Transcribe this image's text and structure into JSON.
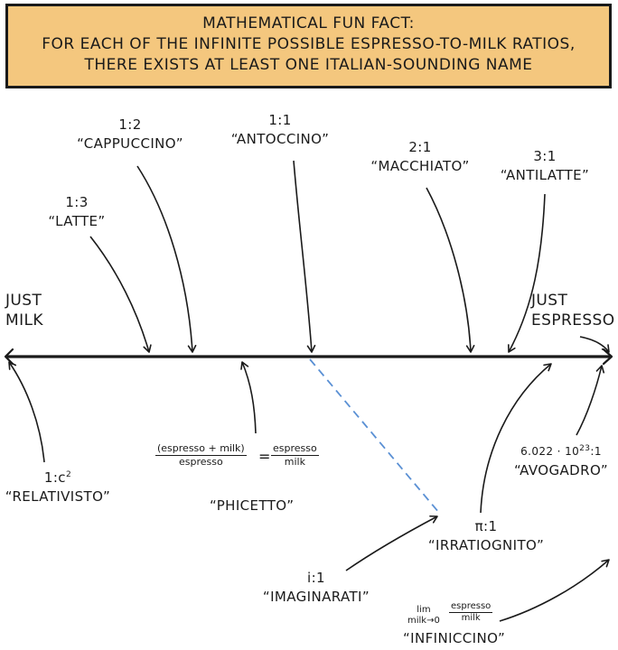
{
  "header": {
    "line1": "MATHEMATICAL FUN FACT:",
    "line2": "FOR EACH OF THE INFINITE POSSIBLE ESPRESSO-TO-MILK RATIOS,",
    "line3": "THERE EXISTS AT LEAST ONE ITALIAN-SOUNDING NAME",
    "background": "#f4c77e"
  },
  "endpoints": {
    "left_line1": "JUST",
    "left_line2": "MILK",
    "right_line1": "JUST",
    "right_line2": "ESPRESSO"
  },
  "drinks": {
    "cappuccino": {
      "ratio": "1:2",
      "name": "“CAPPUCCINO”"
    },
    "antoccino": {
      "ratio": "1:1",
      "name": "“ANTOCCINO”"
    },
    "latte": {
      "ratio": "1:3",
      "name": "“LATTE”"
    },
    "macchiato": {
      "ratio": "2:1",
      "name": "“MACCHIATO”"
    },
    "antilatte": {
      "ratio": "3:1",
      "name": "“ANTILATTE”"
    },
    "relativisto": {
      "ratio_base": "1:c",
      "ratio_exp": "2",
      "name": "“RELATIVISTO”"
    },
    "phicetto": {
      "lhs_num": "(espresso + milk)",
      "lhs_den": "espresso",
      "equals": "=",
      "rhs_num": "espresso",
      "rhs_den": "milk",
      "name": "“PHICETTO”"
    },
    "avogadro": {
      "ratio_base": "6.022 · 10",
      "ratio_exp": "23",
      "ratio_tail": ":1",
      "name": "“AVOGADRO”"
    },
    "irratiognito": {
      "ratio": "π:1",
      "name": "“IRRATIOGNITO”"
    },
    "imaginarati": {
      "ratio": "i:1",
      "name": "“IMAGINARATI”"
    },
    "infiniccino": {
      "lim_word": "lim",
      "lim_sub": "milk→0",
      "num": "espresso",
      "den": "milk",
      "name": "“INFINICCINO”"
    }
  },
  "colors": {
    "ink": "#1a1a1a",
    "dashed_line": "#5a90d4"
  }
}
